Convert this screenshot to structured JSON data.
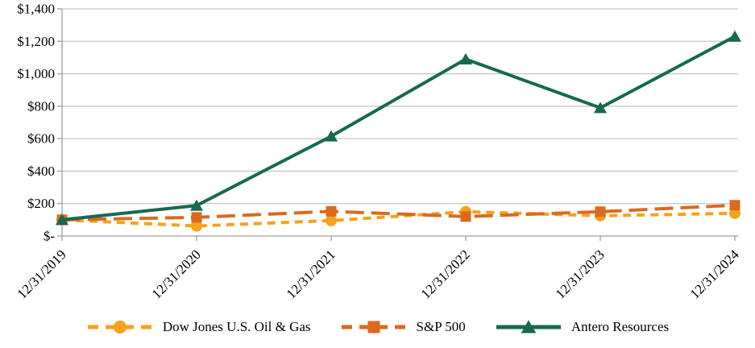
{
  "chart_data": {
    "type": "line",
    "title": "",
    "categories": [
      "12/31/2019",
      "12/31/2020",
      "12/31/2021",
      "12/31/2022",
      "12/31/2023",
      "12/31/2024"
    ],
    "series": [
      {
        "name": "Dow Jones U.S. Oil & Gas",
        "color": "#F5A21C",
        "marker": "circle",
        "dash": "10 7",
        "values": [
          100,
          62,
          95,
          150,
          125,
          140
        ]
      },
      {
        "name": "S&P 500",
        "color": "#DB6A1E",
        "marker": "square",
        "dash": "23 9",
        "values": [
          100,
          115,
          152,
          120,
          150,
          190
        ]
      },
      {
        "name": "Antero Resources",
        "color": "#17694F",
        "marker": "triangle",
        "dash": "",
        "values": [
          100,
          188,
          615,
          1090,
          790,
          1230
        ]
      }
    ],
    "y_axis": {
      "ticks": [
        {
          "value": 0,
          "label": "$-"
        },
        {
          "value": 200,
          "label": "$200"
        },
        {
          "value": 400,
          "label": "$400"
        },
        {
          "value": 600,
          "label": "$600"
        },
        {
          "value": 800,
          "label": "$800"
        },
        {
          "value": 1000,
          "label": "$1,000"
        },
        {
          "value": 1200,
          "label": "$1,200"
        },
        {
          "value": 1400,
          "label": "$1,400"
        }
      ]
    },
    "ylim": [
      0,
      1400
    ],
    "grid": true,
    "legend_position": "bottom",
    "colors": {
      "grid": "#C6C6C6",
      "axis": "#9E9E9E",
      "text": "#000000",
      "background": "#FFFFFF"
    }
  }
}
